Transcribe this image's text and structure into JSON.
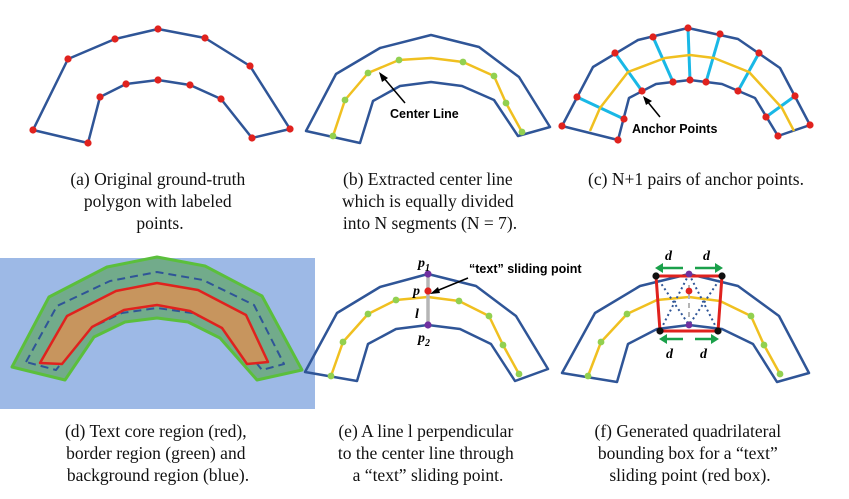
{
  "colors": {
    "polygon": "#2f5597",
    "point": "#e0221e",
    "center_line": "#f0c020",
    "center_point": "#92d050",
    "anchor_link": "#19b8e6",
    "core_region": "#c7955e",
    "border_region": "#72ab8b",
    "background": "#9db9e6",
    "green_edge": "#5bbf3c",
    "p_point": "#7030a0",
    "box": "#e0221e",
    "arrow": "#1aa04a"
  },
  "panels": [
    {
      "id": "a",
      "caption_lines": [
        "(a) Original ground-truth",
        "polygon with labeled",
        "points."
      ]
    },
    {
      "id": "b",
      "caption_lines": [
        "(b) Extracted center line",
        "which is equally divided",
        "into N segments (N = 7)."
      ],
      "labels": {
        "center_line": "Center Line"
      }
    },
    {
      "id": "c",
      "caption_lines": [
        "(c) N+1 pairs of anchor points."
      ],
      "labels": {
        "anchor_points": "Anchor Points"
      }
    },
    {
      "id": "d",
      "caption_lines": [
        "(d) Text core region (red),",
        "border region (green) and",
        "background region (blue)."
      ]
    },
    {
      "id": "e",
      "caption_lines": [
        "(e) A line l perpendicular",
        "to the center line through",
        "a “text” sliding point."
      ],
      "labels": {
        "p1_base": "p",
        "p1_sub": "1",
        "p2_base": "p",
        "p2_sub": "2",
        "p": "p",
        "l": "l",
        "sliding_point": "“text” sliding point"
      }
    },
    {
      "id": "f",
      "caption_lines": [
        "(f) Generated quadrilateral",
        "bounding box for a “text”",
        "sliding point (red box)."
      ],
      "labels": {
        "d": "d"
      }
    }
  ]
}
